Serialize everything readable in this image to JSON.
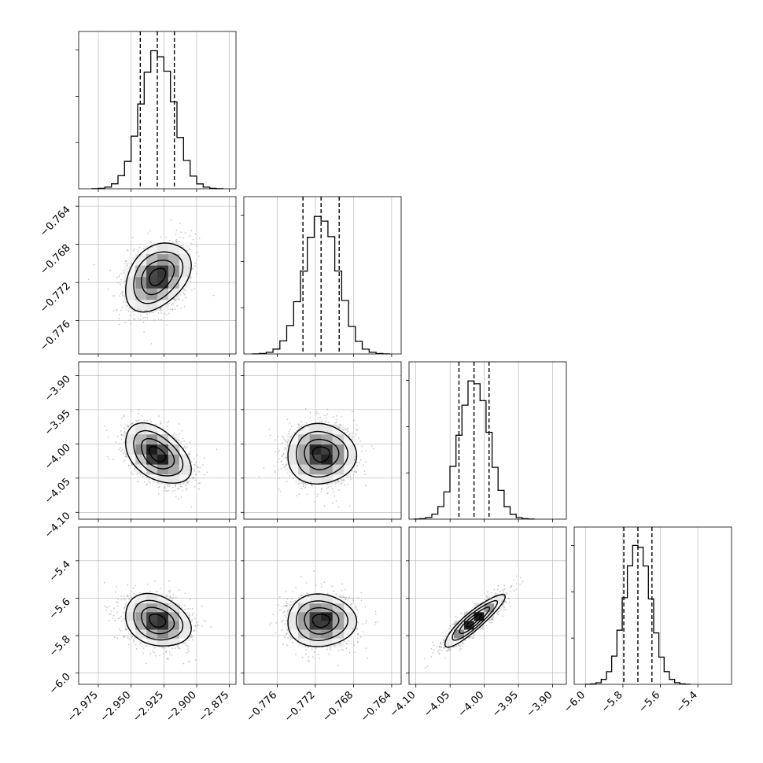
{
  "chart_data": {
    "type": "corner",
    "grid": true,
    "parameters": [
      {
        "range": [
          -2.99,
          -2.87
        ],
        "ticks": [
          -2.975,
          -2.95,
          -2.925,
          -2.9,
          -2.875
        ],
        "tick_labels": [
          "−2.975",
          "−2.950",
          "−2.925",
          "−2.900",
          "−2.875"
        ],
        "mean": -2.93,
        "sd": 0.0125,
        "quantiles": [
          -2.943,
          -2.93,
          -2.917
        ]
      },
      {
        "range": [
          -0.7795,
          -0.763
        ],
        "ticks": [
          -0.776,
          -0.772,
          -0.768,
          -0.764
        ],
        "tick_labels": [
          "−0.776",
          "−0.772",
          "−0.768",
          "−0.764"
        ],
        "mean": -0.7714,
        "sd": 0.0018,
        "quantiles": [
          -0.7733,
          -0.7714,
          -0.7695
        ]
      },
      {
        "range": [
          -4.11,
          -3.88
        ],
        "ticks": [
          -4.1,
          -4.05,
          -4.0,
          -3.95,
          -3.9
        ],
        "tick_labels": [
          "−4.10",
          "−4.05",
          "−4.00",
          "−3.95",
          "−3.90"
        ],
        "mean": -4.015,
        "sd": 0.022,
        "quantiles": [
          -4.037,
          -4.015,
          -3.993
        ]
      },
      {
        "range": [
          -6.06,
          -5.22
        ],
        "ticks": [
          -6.0,
          -5.8,
          -5.6,
          -5.4
        ],
        "tick_labels": [
          "−6.0",
          "−5.8",
          "−5.6",
          "−5.4"
        ],
        "mean": -5.72,
        "sd": 0.07,
        "quantiles": [
          -5.795,
          -5.72,
          -5.645
        ]
      }
    ],
    "correlations": [
      {
        "i": 1,
        "j": 0,
        "rho": 0.35
      },
      {
        "i": 2,
        "j": 0,
        "rho": -0.45
      },
      {
        "i": 2,
        "j": 1,
        "rho": 0.0
      },
      {
        "i": 3,
        "j": 0,
        "rho": -0.25
      },
      {
        "i": 3,
        "j": 1,
        "rho": 0.0
      },
      {
        "i": 3,
        "j": 2,
        "rho": 0.9
      }
    ],
    "histogram_style": "step",
    "contour_levels_sigma": [
      0.5,
      1.0,
      1.5,
      2.0
    ],
    "colors": {
      "ink": "#000000",
      "grid": "#b0b0b0",
      "points": "#9a9a9a"
    }
  }
}
